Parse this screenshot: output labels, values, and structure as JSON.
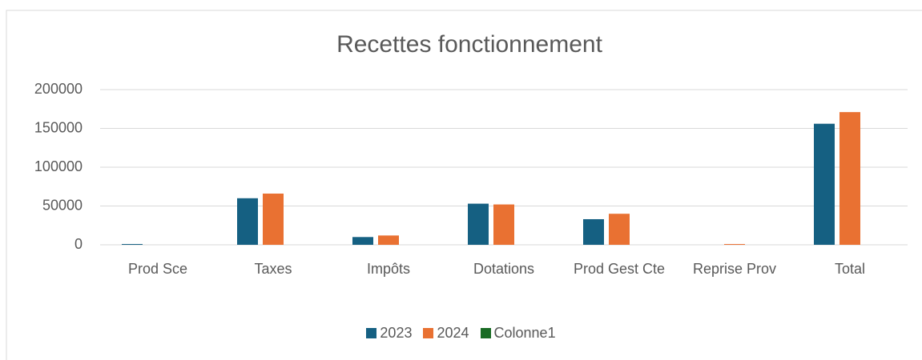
{
  "chart_data": {
    "type": "bar",
    "title": "Recettes fonctionnement",
    "categories": [
      "Prod Sce",
      "Taxes",
      "Impôts",
      "Dotations",
      "Prod Gest Cte",
      "Reprise Prov",
      "Total"
    ],
    "series": [
      {
        "name": "2023",
        "color": "#156082",
        "values": [
          1000,
          60000,
          10000,
          53000,
          33000,
          0,
          156000
        ]
      },
      {
        "name": "2024",
        "color": "#e97132",
        "values": [
          0,
          66000,
          12000,
          52000,
          40000,
          1000,
          171000
        ]
      },
      {
        "name": "Colonne1",
        "color": "#196b24",
        "values": [
          null,
          null,
          null,
          null,
          null,
          null,
          null
        ]
      }
    ],
    "ylim": [
      0,
      200000
    ],
    "yticks": [
      0,
      50000,
      100000,
      150000,
      200000
    ],
    "grid": true,
    "legend": "bottom"
  }
}
